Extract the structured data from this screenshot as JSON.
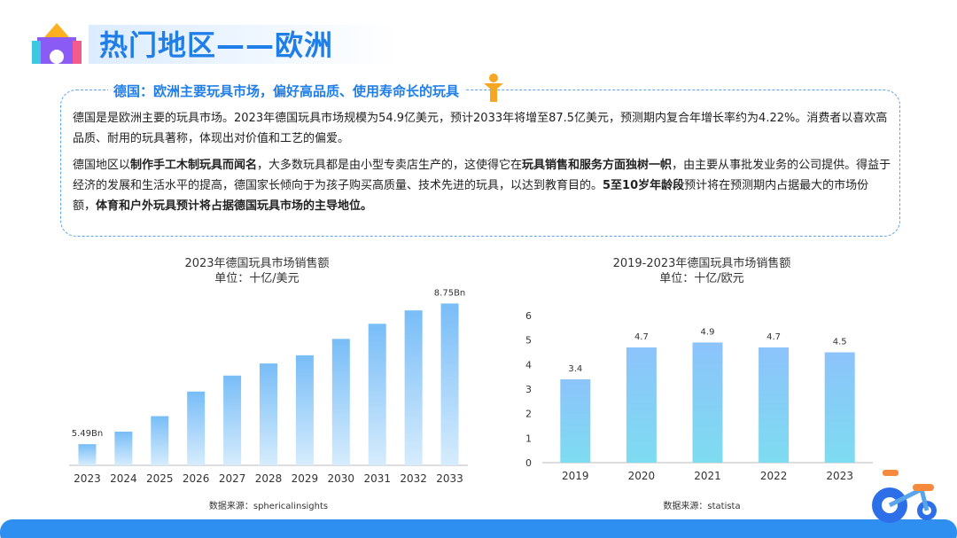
{
  "header": {
    "title": "热门地区——欧洲"
  },
  "section": {
    "heading": "德国：欧洲主要玩具市场，偏好高品质、使用寿命长的玩具",
    "paragraphs": [
      [
        {
          "text": "德国是是欧洲主要的玩具市场。2023年德国玩具市场规模为54.9亿美元，预计2033年将增至87.5亿美元，预测期内复合年增长率约为4.22%。消费者以喜欢高品质、耐用的玩具著称，体现出对价值和工艺的偏爱。",
          "bold": false
        }
      ],
      [
        {
          "text": "德国地区以",
          "bold": false
        },
        {
          "text": "制作手工木制玩具而闻名",
          "bold": true
        },
        {
          "text": "，大多数玩具都是由小型专卖店生产的，这使得它在",
          "bold": false
        },
        {
          "text": "玩具销售和服务方面独树一帜",
          "bold": true
        },
        {
          "text": "，由主要从事批发业务的公司提供。得益于经济的发展和生活水平的提高，德国家长倾向于为孩子购买高质量、技术先进的玩具，以达到教育目的。",
          "bold": false
        },
        {
          "text": "5至10岁年龄段",
          "bold": true
        },
        {
          "text": "预计将在预测期内占据最大的市场份额，",
          "bold": false
        },
        {
          "text": "体育和户外玩具预计将占据德国玩具市场的主导地位。",
          "bold": true
        }
      ]
    ]
  },
  "chart_data": [
    {
      "type": "bar",
      "title": "2023年德国玩具市场销售额",
      "subtitle": "单位：十亿/美元",
      "source": "数据来源：sphericalinsights",
      "categories": [
        "2023",
        "2024",
        "2025",
        "2026",
        "2027",
        "2028",
        "2029",
        "2030",
        "2031",
        "2032",
        "2033"
      ],
      "values": [
        5.49,
        5.78,
        6.14,
        6.71,
        7.08,
        7.36,
        7.55,
        7.93,
        8.28,
        8.59,
        8.75
      ],
      "value_labels": [
        "5.49Bn",
        null,
        null,
        null,
        null,
        null,
        null,
        null,
        null,
        null,
        "8.75Bn"
      ],
      "color": [
        "#78bdf7",
        "#d6ecfd"
      ],
      "ylim": [
        5.0,
        8.8
      ]
    },
    {
      "type": "bar",
      "title": "2019-2023年德国玩具市场销售额",
      "subtitle": "单位：十亿/欧元",
      "source": "数据来源：statista",
      "categories": [
        "2019",
        "2020",
        "2021",
        "2022",
        "2023"
      ],
      "values": [
        3.4,
        4.7,
        4.9,
        4.7,
        4.5
      ],
      "color": [
        "#8cc3fb",
        "#7edcf0"
      ],
      "ylim": [
        0,
        6
      ],
      "yticks": [
        0,
        1,
        2,
        3,
        4,
        5,
        6
      ]
    }
  ]
}
